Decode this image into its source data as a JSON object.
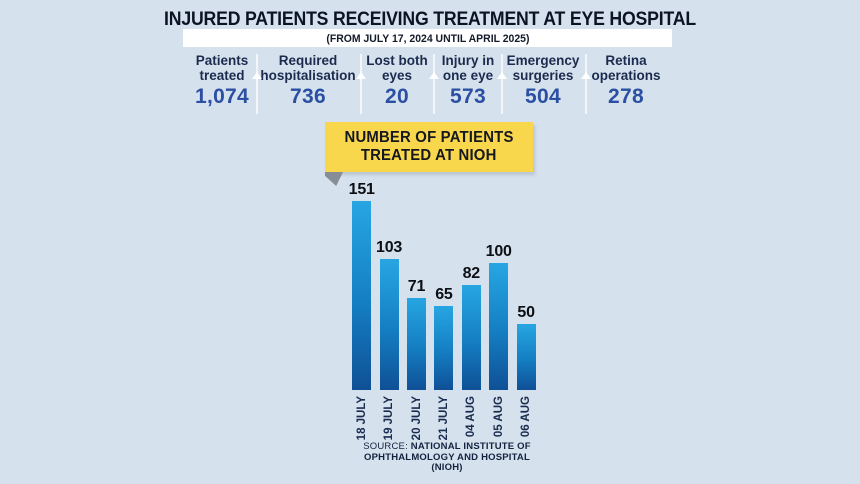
{
  "header": {
    "title": "INJURED PATIENTS RECEIVING TREATMENT AT EYE HOSPITAL",
    "subtitle": "(FROM JULY 17, 2024 UNTIL APRIL 2025)"
  },
  "stats": {
    "items": [
      {
        "label_lines": [
          "Patients",
          "treated"
        ],
        "value": "1,074"
      },
      {
        "label_lines": [
          "Required",
          "hospitalisation"
        ],
        "value": "736"
      },
      {
        "label_lines": [
          "Lost both",
          "eyes"
        ],
        "value": "20"
      },
      {
        "label_lines": [
          "Injury in",
          "one eye"
        ],
        "value": "573"
      },
      {
        "label_lines": [
          "Emergency",
          "surgeries"
        ],
        "value": "504"
      },
      {
        "label_lines": [
          "Retina",
          "operations"
        ],
        "value": "278"
      }
    ]
  },
  "callout": {
    "line1": "NUMBER OF PATIENTS",
    "line2": "TREATED AT NIOH"
  },
  "chart_data": {
    "type": "bar",
    "title": "NUMBER OF PATIENTS TREATED AT NIOH",
    "categories": [
      "18 JULY",
      "19 JULY",
      "20 JULY",
      "21 JULY",
      "04 AUG",
      "05 AUG",
      "06 AUG"
    ],
    "values": [
      151,
      103,
      71,
      65,
      82,
      100,
      50
    ],
    "xlabel": "",
    "ylabel": "",
    "ylim": [
      0,
      160
    ],
    "grid": false,
    "legend": false,
    "bar_color_top": "#27a6e2",
    "bar_color_bottom": "#0f5096"
  },
  "source": {
    "prefix": "SOURCE:",
    "line1": "NATIONAL INSTITUTE OF",
    "line2": "OPHTHALMOLOGY AND HOSPITAL",
    "line3": "(NIOH)"
  },
  "colors": {
    "background": "#d6e1ee",
    "banner": "#ffffff",
    "title_text": "#0c1424",
    "stat_value_blue": "#2b4fa2",
    "callout_yellow": "#f8d74c",
    "bar_top": "#27a6e2",
    "bar_bottom": "#0f5096"
  }
}
